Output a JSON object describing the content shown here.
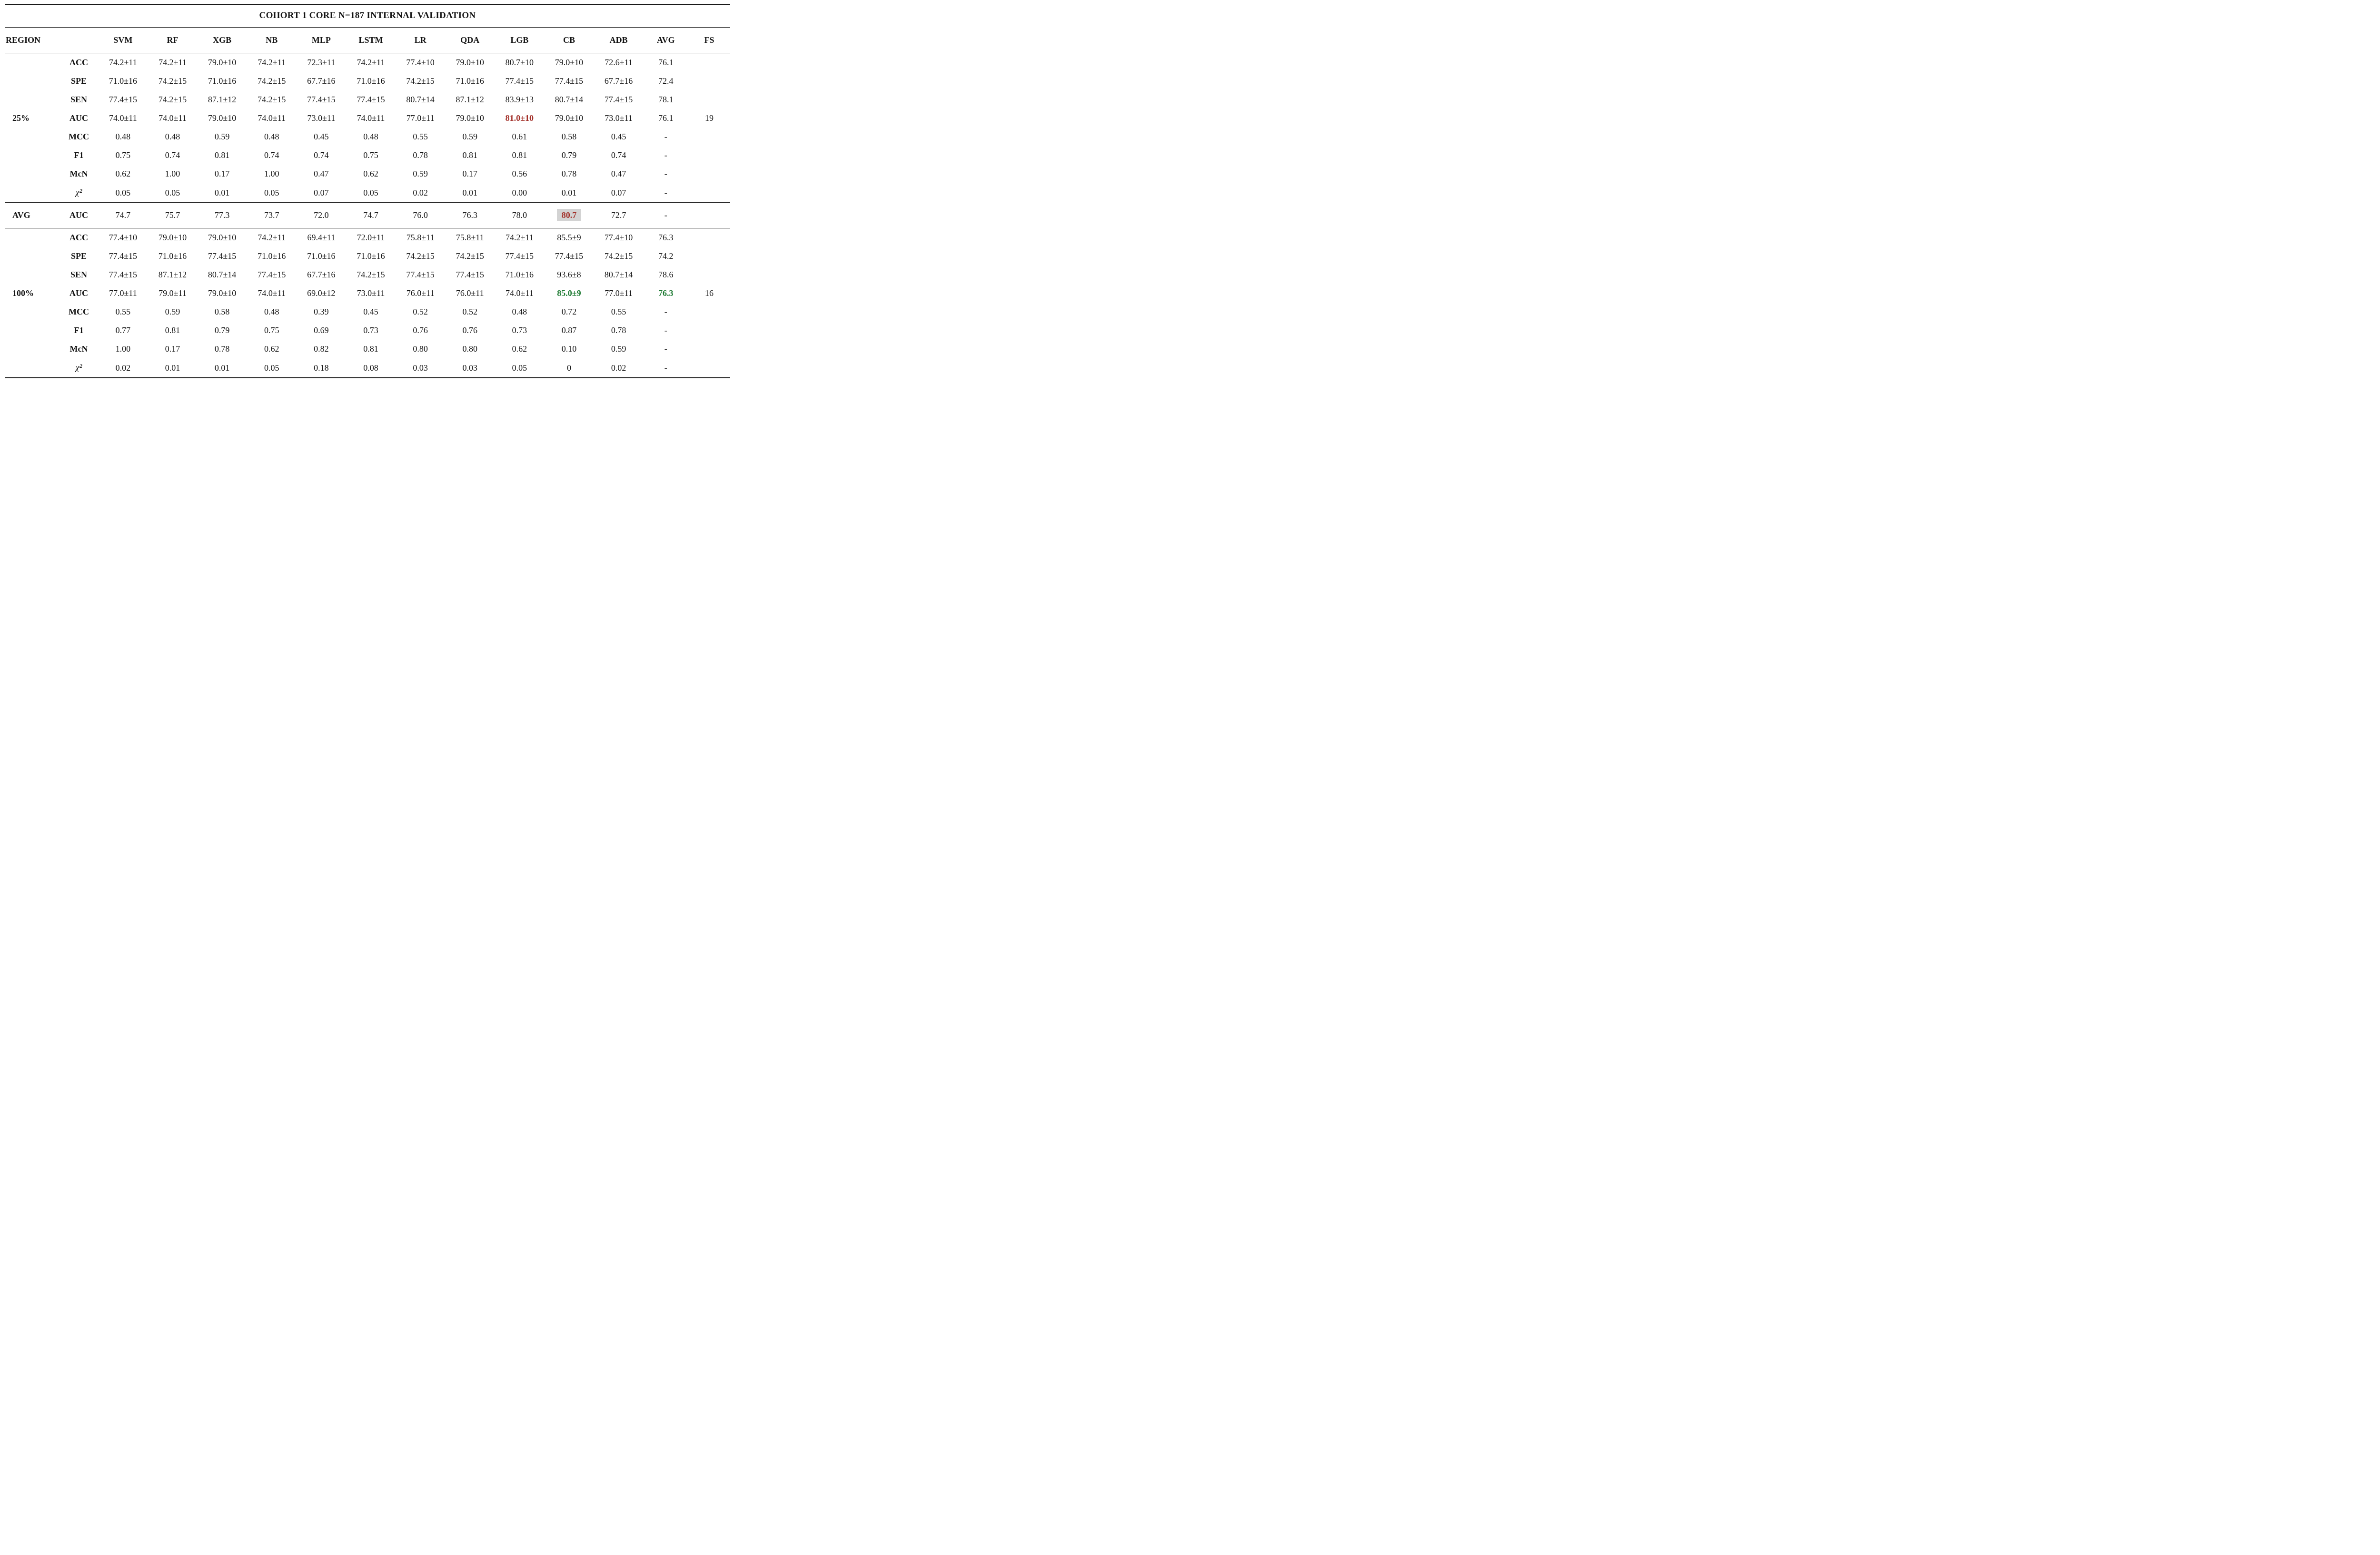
{
  "title": "COHORT 1 CORE N=187 INTERNAL VALIDATION",
  "colors": {
    "best_auc_red": "#a3312a",
    "best_auc_green": "#1d7a32",
    "highlight_bg": "#d3d3d3",
    "rule_color": "#1a1a1a"
  },
  "header": {
    "region": "REGION",
    "metric": "",
    "models": [
      "SVM",
      "RF",
      "XGB",
      "NB",
      "MLP",
      "LSTM",
      "LR",
      "QDA",
      "LGB",
      "CB",
      "ADB",
      "AVG",
      "FS"
    ]
  },
  "sections": [
    {
      "region": "25%",
      "kind": "block",
      "anchor": "AUC",
      "fs": "19",
      "rows": [
        {
          "metric": "ACC",
          "values": [
            "74.2±11",
            "74.2±11",
            "79.0±10",
            "74.2±11",
            "72.3±11",
            "74.2±11",
            "77.4±10",
            "79.0±10",
            "80.7±10",
            "79.0±10",
            "72.6±11",
            "76.1"
          ]
        },
        {
          "metric": "SPE",
          "values": [
            "71.0±16",
            "74.2±15",
            "71.0±16",
            "74.2±15",
            "67.7±16",
            "71.0±16",
            "74.2±15",
            "71.0±16",
            "77.4±15",
            "77.4±15",
            "67.7±16",
            "72.4"
          ]
        },
        {
          "metric": "SEN",
          "values": [
            "77.4±15",
            "74.2±15",
            "87.1±12",
            "74.2±15",
            "77.4±15",
            "77.4±15",
            "80.7±14",
            "87.1±12",
            "83.9±13",
            "80.7±14",
            "77.4±15",
            "78.1"
          ]
        },
        {
          "metric": "AUC",
          "values": [
            "74.0±11",
            "74.0±11",
            "79.0±10",
            "74.0±11",
            "73.0±11",
            "74.0±11",
            "77.0±11",
            "79.0±10",
            {
              "t": "81.0±10",
              "s": "red"
            },
            "79.0±10",
            "73.0±11",
            "76.1"
          ]
        },
        {
          "metric": "MCC",
          "values": [
            "0.48",
            "0.48",
            "0.59",
            "0.48",
            "0.45",
            "0.48",
            "0.55",
            "0.59",
            "0.61",
            "0.58",
            "0.45",
            "-"
          ]
        },
        {
          "metric": "F1",
          "values": [
            "0.75",
            "0.74",
            "0.81",
            "0.74",
            "0.74",
            "0.75",
            "0.78",
            "0.81",
            "0.81",
            "0.79",
            "0.74",
            "-"
          ]
        },
        {
          "metric": "McN",
          "values": [
            "0.62",
            "1.00",
            "0.17",
            "1.00",
            "0.47",
            "0.62",
            "0.59",
            "0.17",
            "0.56",
            "0.78",
            "0.47",
            "-"
          ]
        },
        {
          "metric": "χ²",
          "values": [
            "0.05",
            "0.05",
            "0.01",
            "0.05",
            "0.07",
            "0.05",
            "0.02",
            "0.01",
            "0.00",
            "0.01",
            "0.07",
            "-"
          ]
        }
      ]
    },
    {
      "region": "AVG",
      "kind": "avg",
      "anchor": "AUC",
      "fs": "",
      "rows": [
        {
          "metric": "AUC",
          "values": [
            "74.7",
            "75.7",
            "77.3",
            "73.7",
            "72.0",
            "74.7",
            "76.0",
            "76.3",
            "78.0",
            {
              "t": "80.7",
              "s": "red hl"
            },
            "72.7",
            "-"
          ]
        }
      ]
    },
    {
      "region": "100%",
      "kind": "block",
      "anchor": "AUC",
      "fs": "16",
      "rows": [
        {
          "metric": "ACC",
          "values": [
            "77.4±10",
            "79.0±10",
            "79.0±10",
            "74.2±11",
            "69.4±11",
            "72.0±11",
            "75.8±11",
            "75.8±11",
            "74.2±11",
            "85.5±9",
            "77.4±10",
            "76.3"
          ]
        },
        {
          "metric": "SPE",
          "values": [
            "77.4±15",
            "71.0±16",
            "77.4±15",
            "71.0±16",
            "71.0±16",
            "71.0±16",
            "74.2±15",
            "74.2±15",
            "77.4±15",
            "77.4±15",
            "74.2±15",
            "74.2"
          ]
        },
        {
          "metric": "SEN",
          "values": [
            "77.4±15",
            "87.1±12",
            "80.7±14",
            "77.4±15",
            "67.7±16",
            "74.2±15",
            "77.4±15",
            "77.4±15",
            "71.0±16",
            "93.6±8",
            "80.7±14",
            "78.6"
          ]
        },
        {
          "metric": "AUC",
          "values": [
            "77.0±11",
            "79.0±11",
            "79.0±10",
            "74.0±11",
            "69.0±12",
            "73.0±11",
            "76.0±11",
            "76.0±11",
            "74.0±11",
            {
              "t": "85.0±9",
              "s": "green"
            },
            "77.0±11",
            {
              "t": "76.3",
              "s": "green"
            }
          ]
        },
        {
          "metric": "MCC",
          "values": [
            "0.55",
            "0.59",
            "0.58",
            "0.48",
            "0.39",
            "0.45",
            "0.52",
            "0.52",
            "0.48",
            "0.72",
            "0.55",
            "-"
          ]
        },
        {
          "metric": "F1",
          "values": [
            "0.77",
            "0.81",
            "0.79",
            "0.75",
            "0.69",
            "0.73",
            "0.76",
            "0.76",
            "0.73",
            "0.87",
            "0.78",
            "-"
          ]
        },
        {
          "metric": "McN",
          "values": [
            "1.00",
            "0.17",
            "0.78",
            "0.62",
            "0.82",
            "0.81",
            "0.80",
            "0.80",
            "0.62",
            "0.10",
            "0.59",
            "-"
          ]
        },
        {
          "metric": "χ²",
          "values": [
            "0.02",
            "0.01",
            "0.01",
            "0.05",
            "0.18",
            "0.08",
            "0.03",
            "0.03",
            "0.05",
            "0",
            "0.02",
            "-"
          ]
        }
      ]
    }
  ]
}
